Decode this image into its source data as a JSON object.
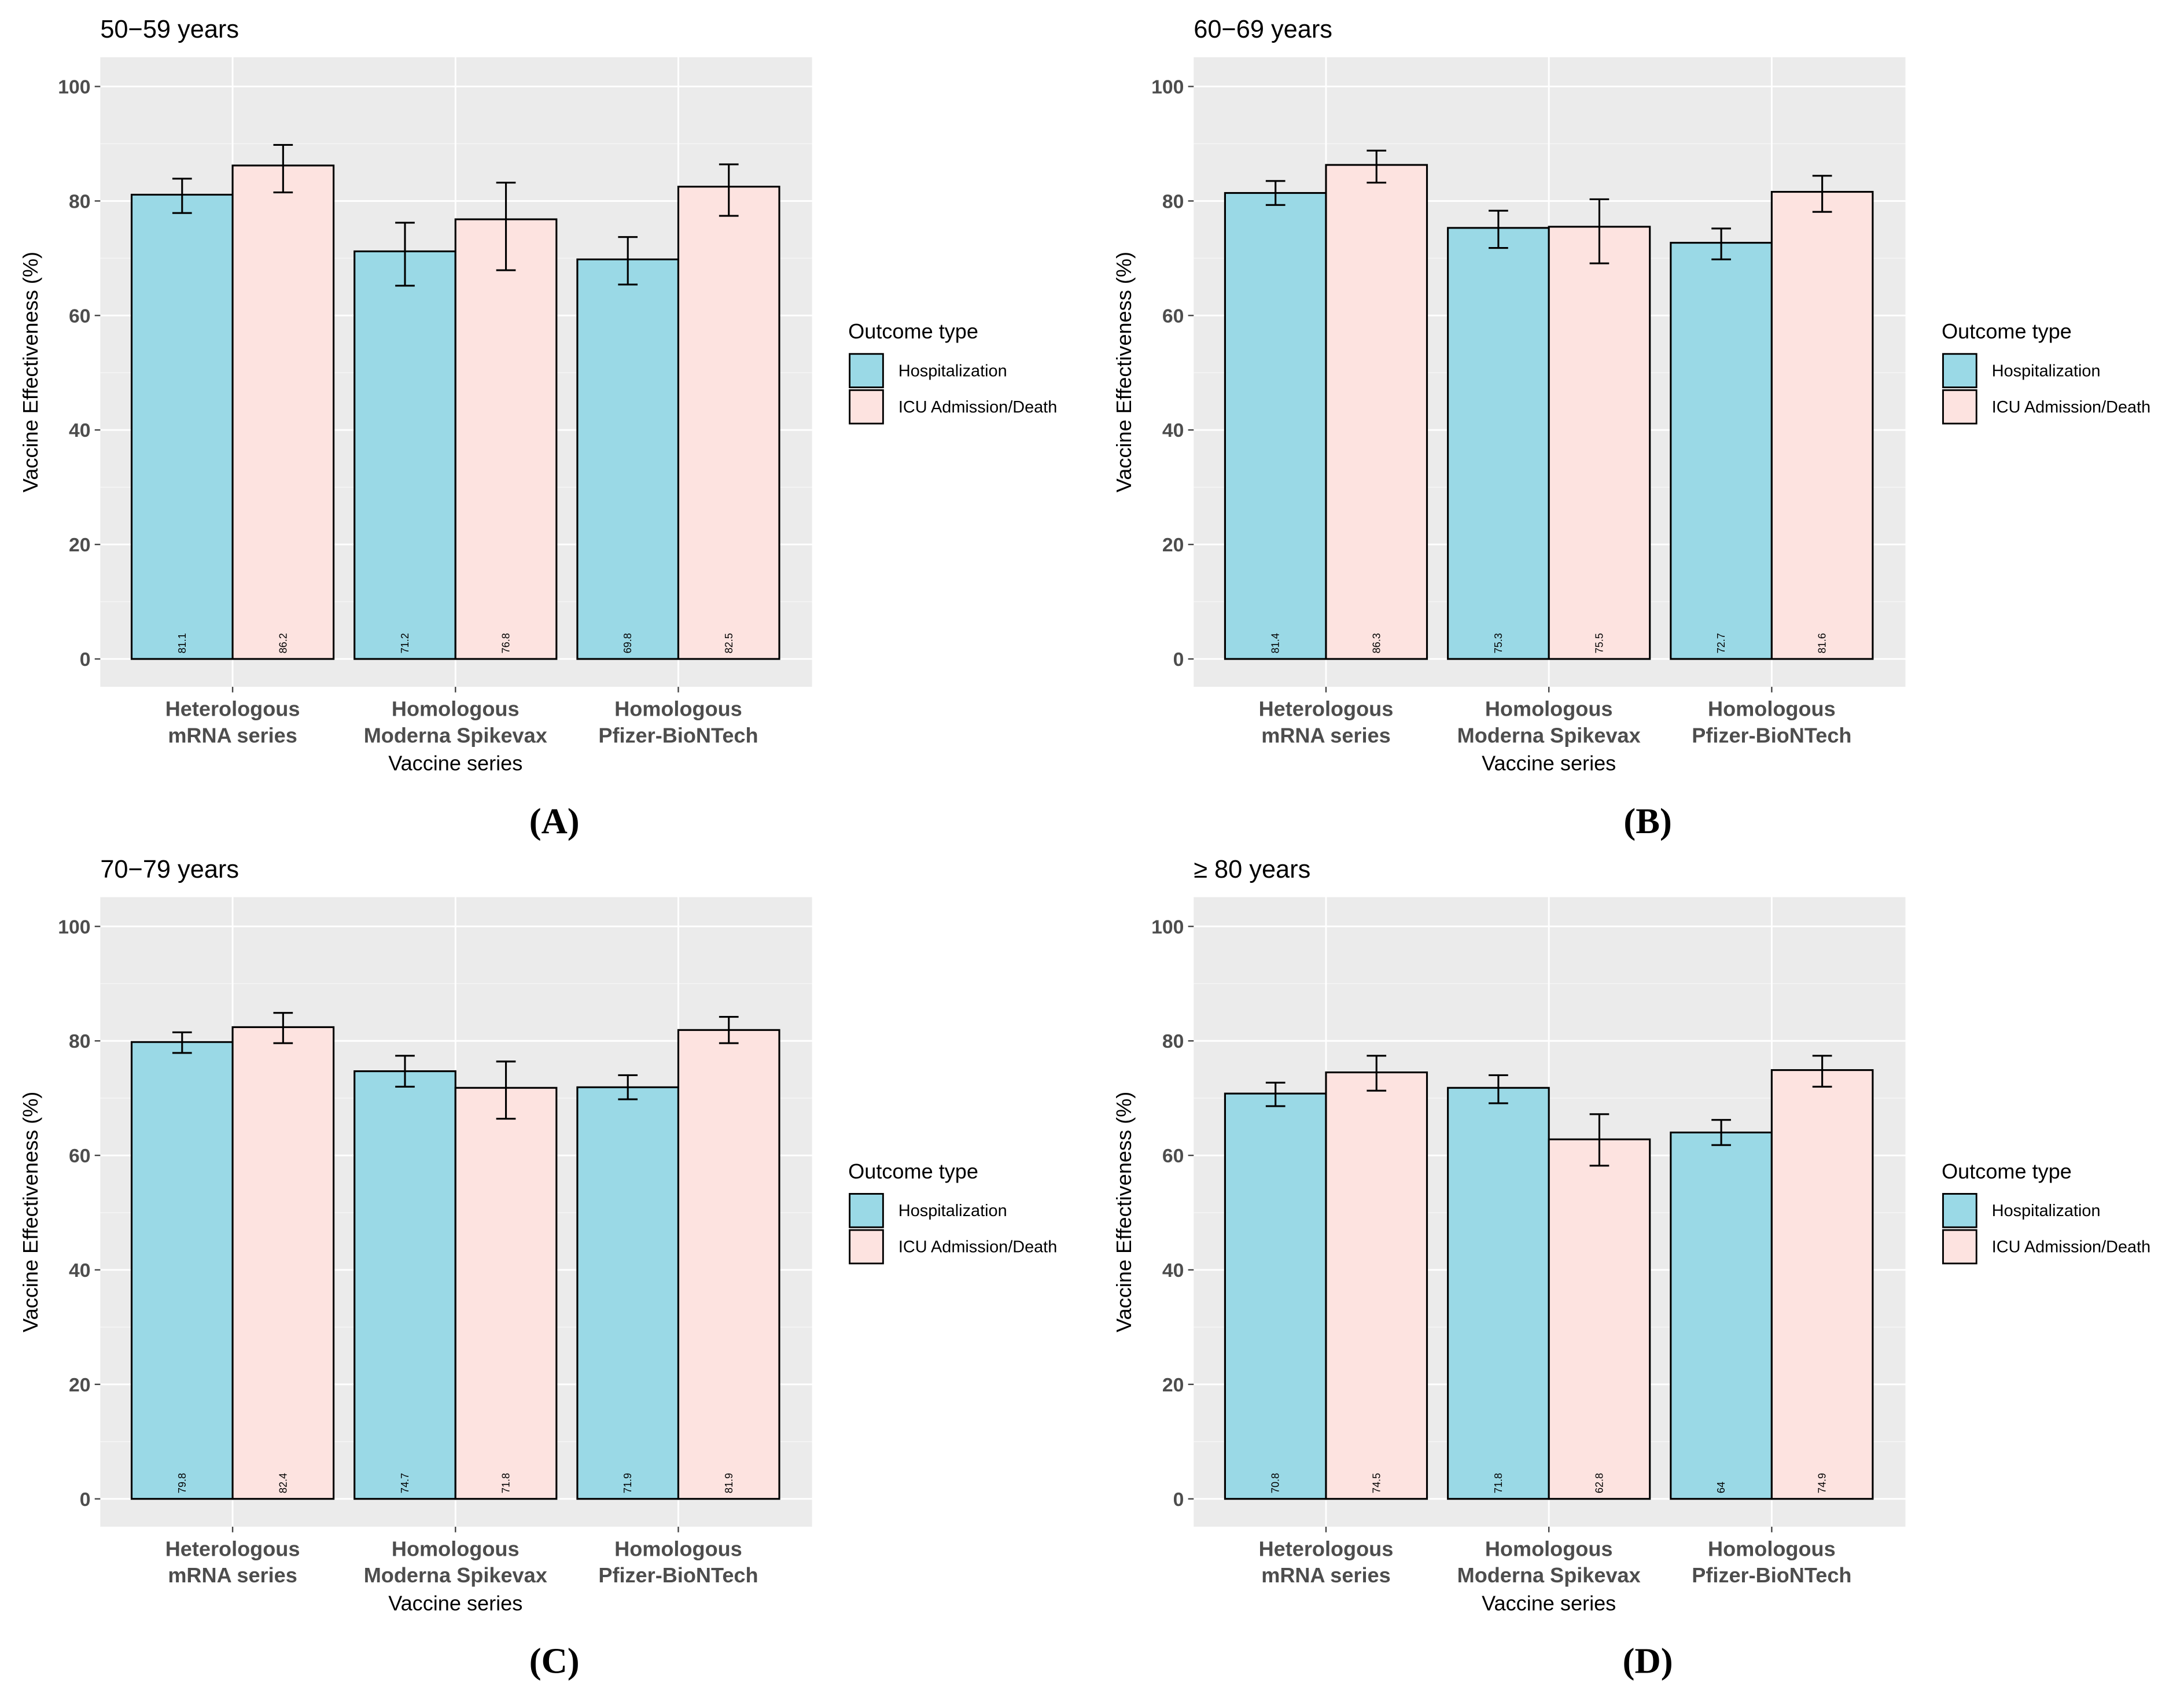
{
  "chart_data": {
    "type": "bar",
    "xlabel": "Vaccine series",
    "ylabel": "Vaccine Effectiveness (%)",
    "ylim": [
      0,
      100
    ],
    "yticks": [
      "0",
      "20",
      "40",
      "60",
      "80",
      "100"
    ],
    "categories": [
      [
        "Heterologous",
        "mRNA series"
      ],
      [
        "Homologous",
        "Moderna Spikevax"
      ],
      [
        "Homologous",
        "Pfizer-BioNTech"
      ]
    ],
    "legend": {
      "title": "Outcome type",
      "placement": "right",
      "entries": [
        "Hospitalization",
        "ICU Admission/Death"
      ]
    },
    "colors": {
      "Hospitalization": "#9ad9e6",
      "ICU Admission/Death": "#fde3e0",
      "panel_bg": "#ebebeb"
    },
    "panels": [
      {
        "caption": "(A)",
        "title": "50−59 years",
        "series": [
          {
            "name": "Hospitalization",
            "values": [
              81.1,
              71.2,
              69.8
            ],
            "labels": [
              "81.1",
              "71.2",
              "69.8"
            ],
            "lower": [
              77.9,
              65.2,
              65.4
            ],
            "upper": [
              83.9,
              76.2,
              73.7
            ]
          },
          {
            "name": "ICU Admission/Death",
            "values": [
              86.2,
              76.8,
              82.5
            ],
            "labels": [
              "86.2",
              "76.8",
              "82.5"
            ],
            "lower": [
              81.5,
              67.9,
              77.4
            ],
            "upper": [
              89.8,
              83.2,
              86.4
            ]
          }
        ]
      },
      {
        "caption": "(B)",
        "title": "60−69 years",
        "series": [
          {
            "name": "Hospitalization",
            "values": [
              81.4,
              75.3,
              72.7
            ],
            "labels": [
              "81.4",
              "75.3",
              "72.7"
            ],
            "lower": [
              79.3,
              71.8,
              69.8
            ],
            "upper": [
              83.5,
              78.3,
              75.2
            ]
          },
          {
            "name": "ICU Admission/Death",
            "values": [
              86.3,
              75.5,
              81.6
            ],
            "labels": [
              "86.3",
              "75.5",
              "81.6"
            ],
            "lower": [
              83.2,
              69.1,
              78.1
            ],
            "upper": [
              88.8,
              80.3,
              84.4
            ]
          }
        ]
      },
      {
        "caption": "(C)",
        "title": "70−79 years",
        "series": [
          {
            "name": "Hospitalization",
            "values": [
              79.8,
              74.7,
              71.9
            ],
            "labels": [
              "79.8",
              "74.7",
              "71.9"
            ],
            "lower": [
              77.9,
              72.0,
              69.8
            ],
            "upper": [
              81.5,
              77.4,
              74.0
            ]
          },
          {
            "name": "ICU Admission/Death",
            "values": [
              82.4,
              71.8,
              81.9
            ],
            "labels": [
              "82.4",
              "71.8",
              "81.9"
            ],
            "lower": [
              79.6,
              66.4,
              79.6
            ],
            "upper": [
              84.9,
              76.4,
              84.2
            ]
          }
        ]
      },
      {
        "caption": "(D)",
        "title": "≥ 80 years",
        "series": [
          {
            "name": "Hospitalization",
            "values": [
              70.8,
              71.8,
              64
            ],
            "labels": [
              "70.8",
              "71.8",
              "64"
            ],
            "lower": [
              68.6,
              69.1,
              61.8
            ],
            "upper": [
              72.7,
              74.0,
              66.2
            ]
          },
          {
            "name": "ICU Admission/Death",
            "values": [
              74.5,
              62.8,
              74.9
            ],
            "labels": [
              "74.5",
              "62.8",
              "74.9"
            ],
            "lower": [
              71.3,
              58.2,
              72.0
            ],
            "upper": [
              77.4,
              67.2,
              77.4
            ]
          }
        ]
      }
    ]
  }
}
